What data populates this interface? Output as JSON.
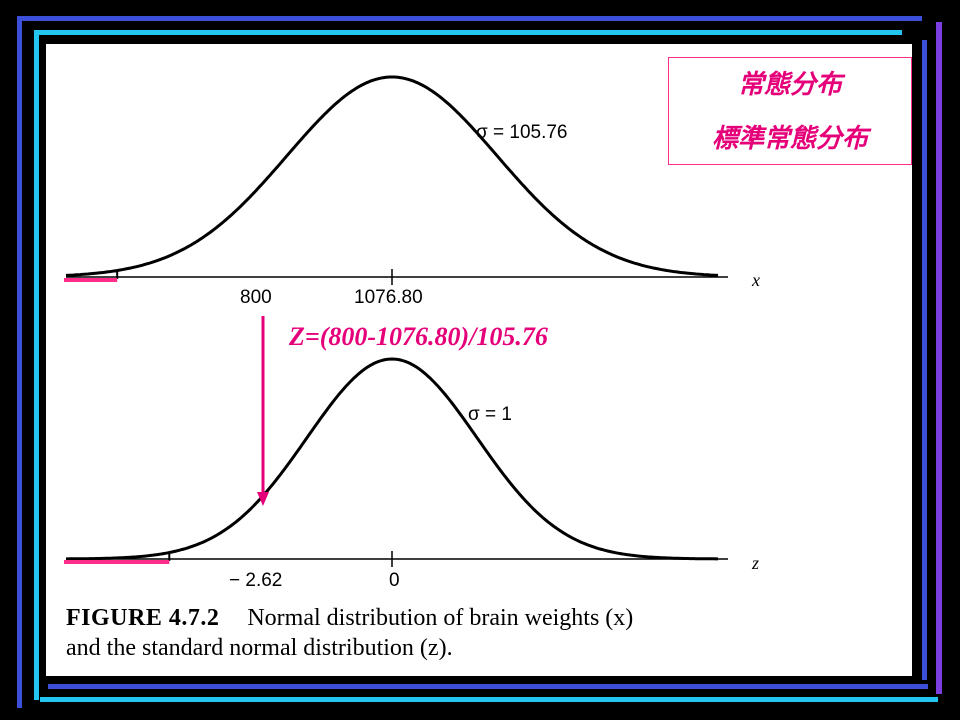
{
  "callout": {
    "line1": "常態分布",
    "line2": "標準常態分布"
  },
  "formula": "Z=(800-1076.80)/105.76",
  "top_plot": {
    "sigma_label": "σ = 105.76",
    "axis_var": "x",
    "tick_800": "800",
    "tick_mean": "1076.80"
  },
  "bottom_plot": {
    "sigma_label": "σ = 1",
    "axis_var": "z",
    "tick_cut": "− 2.62",
    "tick_zero": "0"
  },
  "caption": {
    "figure_label": "FIGURE 4.7.2",
    "line1": "Normal distribution of brain weights (x)",
    "line2": "and the standard normal distribution (z)."
  },
  "chart_data": {
    "type": "line",
    "curves": [
      {
        "distribution": "normal",
        "mean": 1076.8,
        "sd": 105.76,
        "shaded_below": 800
      },
      {
        "distribution": "standard normal",
        "mean": 0,
        "sd": 1,
        "shaded_below": -2.62
      }
    ]
  },
  "colors": {
    "accent": "#e5007a",
    "frame_blue": "#3b4fd8",
    "frame_cyan": "#23c6f0",
    "frame_purple": "#7b3fe0"
  }
}
